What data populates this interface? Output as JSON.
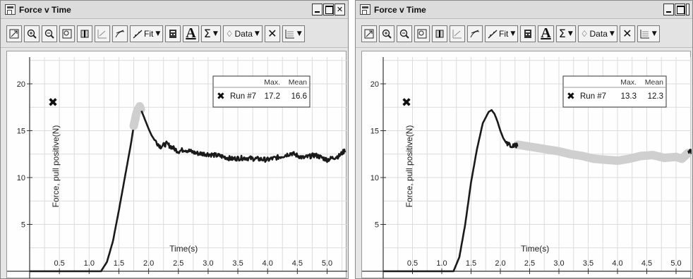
{
  "windows": [
    {
      "title": "Force v Time",
      "toolbar": {
        "fit_label": "Fit",
        "sigma_label": "Σ",
        "data_label": "Data",
        "text_tool_label": "A"
      },
      "legend": {
        "headers": [
          "Max.",
          "Mean"
        ],
        "run": "Run #7",
        "max": "17.2",
        "mean": "16.6"
      }
    },
    {
      "title": "Force v Time",
      "toolbar": {
        "fit_label": "Fit",
        "sigma_label": "Σ",
        "data_label": "Data",
        "text_tool_label": "A"
      },
      "legend": {
        "headers": [
          "Max.",
          "Mean"
        ],
        "run": "Run #7",
        "max": "13.3",
        "mean": "12.3"
      }
    }
  ],
  "chart_data": [
    {
      "type": "line",
      "xlabel": "Time(s)",
      "ylabel": "Force, pull positive(N)",
      "xticks": [
        "0.5",
        "1.0",
        "1.5",
        "2.0",
        "2.5",
        "3.0",
        "3.5",
        "4.0",
        "4.5",
        "5.0"
      ],
      "yticks": [
        "5",
        "10",
        "15",
        "20"
      ],
      "xlim": [
        0.0,
        5.3
      ],
      "ylim": [
        -0.2,
        22
      ],
      "grid": true,
      "line_color": "#1a1a1a",
      "highlight_color": "#cfcfcf",
      "highlight_range": [
        1.75,
        1.88
      ],
      "series": [
        {
          "name": "Run #7",
          "x": [
            0.0,
            0.5,
            1.0,
            1.2,
            1.3,
            1.4,
            1.5,
            1.6,
            1.7,
            1.75,
            1.8,
            1.85,
            1.9,
            1.95,
            2.0,
            2.05,
            2.1,
            2.2,
            2.3,
            2.4,
            2.5,
            2.6,
            2.8,
            3.0,
            3.2,
            3.4,
            3.6,
            3.8,
            4.0,
            4.2,
            4.4,
            4.6,
            4.8,
            5.0,
            5.2,
            5.3
          ],
          "y": [
            0.0,
            0.0,
            0.0,
            0.0,
            1.0,
            3.2,
            6.5,
            10.0,
            13.5,
            15.5,
            17.0,
            17.6,
            16.8,
            16.0,
            15.2,
            14.5,
            14.0,
            13.3,
            13.6,
            13.2,
            12.8,
            13.0,
            12.6,
            12.5,
            12.3,
            12.0,
            12.1,
            12.0,
            11.9,
            12.2,
            12.6,
            12.1,
            12.4,
            11.9,
            12.3,
            12.9
          ]
        }
      ]
    },
    {
      "type": "line",
      "xlabel": "Time(s)",
      "ylabel": "Force, pull positive(N)",
      "xticks": [
        "0.5",
        "1.0",
        "1.5",
        "2.0",
        "2.5",
        "3.0",
        "3.5",
        "4.0",
        "4.5",
        "5.0"
      ],
      "yticks": [
        "5",
        "10",
        "15",
        "20"
      ],
      "xlim": [
        0.0,
        5.3
      ],
      "ylim": [
        -0.2,
        22
      ],
      "grid": true,
      "line_color": "#1a1a1a",
      "highlight_color": "#cfcfcf",
      "highlight_range": [
        2.3,
        5.2
      ],
      "series": [
        {
          "name": "Run #7",
          "x": [
            0.0,
            0.5,
            1.0,
            1.2,
            1.3,
            1.4,
            1.5,
            1.6,
            1.7,
            1.8,
            1.85,
            1.9,
            1.95,
            2.0,
            2.05,
            2.1,
            2.2,
            2.3,
            2.4,
            2.6,
            2.8,
            3.0,
            3.2,
            3.4,
            3.6,
            3.8,
            4.0,
            4.2,
            4.4,
            4.6,
            4.8,
            5.0,
            5.1,
            5.2,
            5.3
          ],
          "y": [
            0.0,
            0.0,
            0.0,
            0.0,
            1.5,
            5.0,
            9.5,
            13.0,
            15.8,
            17.0,
            17.2,
            16.8,
            16.0,
            15.0,
            14.2,
            13.7,
            13.3,
            13.5,
            13.4,
            13.2,
            13.0,
            12.8,
            12.5,
            12.3,
            12.0,
            11.9,
            11.8,
            12.0,
            12.3,
            12.4,
            12.1,
            12.2,
            12.0,
            12.6,
            13.0
          ]
        }
      ]
    }
  ]
}
